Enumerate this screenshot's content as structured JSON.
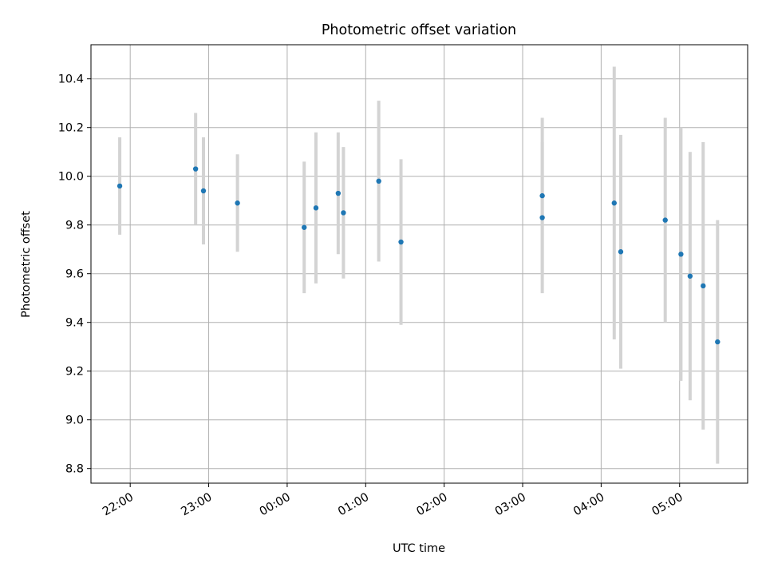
{
  "chart_data": {
    "type": "scatter",
    "title": "Photometric offset variation",
    "xlabel": "UTC time",
    "ylabel": "Photometric offset",
    "grid": true,
    "xlim": [
      "21:30",
      "05:52"
    ],
    "ylim": [
      8.74,
      10.54
    ],
    "x_ticks": [
      "22:00",
      "23:00",
      "00:00",
      "01:00",
      "02:00",
      "03:00",
      "04:00",
      "05:00"
    ],
    "y_ticks": [
      "8.8",
      "9.0",
      "9.2",
      "9.4",
      "9.6",
      "9.8",
      "10.0",
      "10.2",
      "10.4"
    ],
    "y_tick_values": [
      8.8,
      9.0,
      9.2,
      9.4,
      9.6,
      9.8,
      10.0,
      10.2,
      10.4
    ],
    "marker_color": "#1f77b4",
    "errorbar_color": "#d3d3d3",
    "points": [
      {
        "x": "21:52",
        "y": 9.96,
        "yerr": 0.2
      },
      {
        "x": "22:50",
        "y": 10.03,
        "yerr": 0.23
      },
      {
        "x": "22:56",
        "y": 9.94,
        "yerr": 0.22
      },
      {
        "x": "23:22",
        "y": 9.89,
        "yerr": 0.2
      },
      {
        "x": "00:13",
        "y": 9.79,
        "yerr": 0.27
      },
      {
        "x": "00:22",
        "y": 9.87,
        "yerr": 0.31
      },
      {
        "x": "00:39",
        "y": 9.93,
        "yerr": 0.25
      },
      {
        "x": "00:43",
        "y": 9.85,
        "yerr": 0.27
      },
      {
        "x": "01:10",
        "y": 9.98,
        "yerr": 0.33
      },
      {
        "x": "01:27",
        "y": 9.73,
        "yerr": 0.34
      },
      {
        "x": "03:15",
        "y": 9.92,
        "yerr": 0.32
      },
      {
        "x": "03:15",
        "y": 9.83,
        "yerr": 0.31
      },
      {
        "x": "04:10",
        "y": 9.89,
        "yerr": 0.56
      },
      {
        "x": "04:15",
        "y": 9.69,
        "yerr": 0.48
      },
      {
        "x": "04:49",
        "y": 9.82,
        "yerr": 0.42
      },
      {
        "x": "05:01",
        "y": 9.68,
        "yerr": 0.52
      },
      {
        "x": "05:08",
        "y": 9.59,
        "yerr": 0.51
      },
      {
        "x": "05:18",
        "y": 9.55,
        "yerr": 0.59
      },
      {
        "x": "05:29",
        "y": 9.32,
        "yerr": 0.5
      }
    ]
  }
}
